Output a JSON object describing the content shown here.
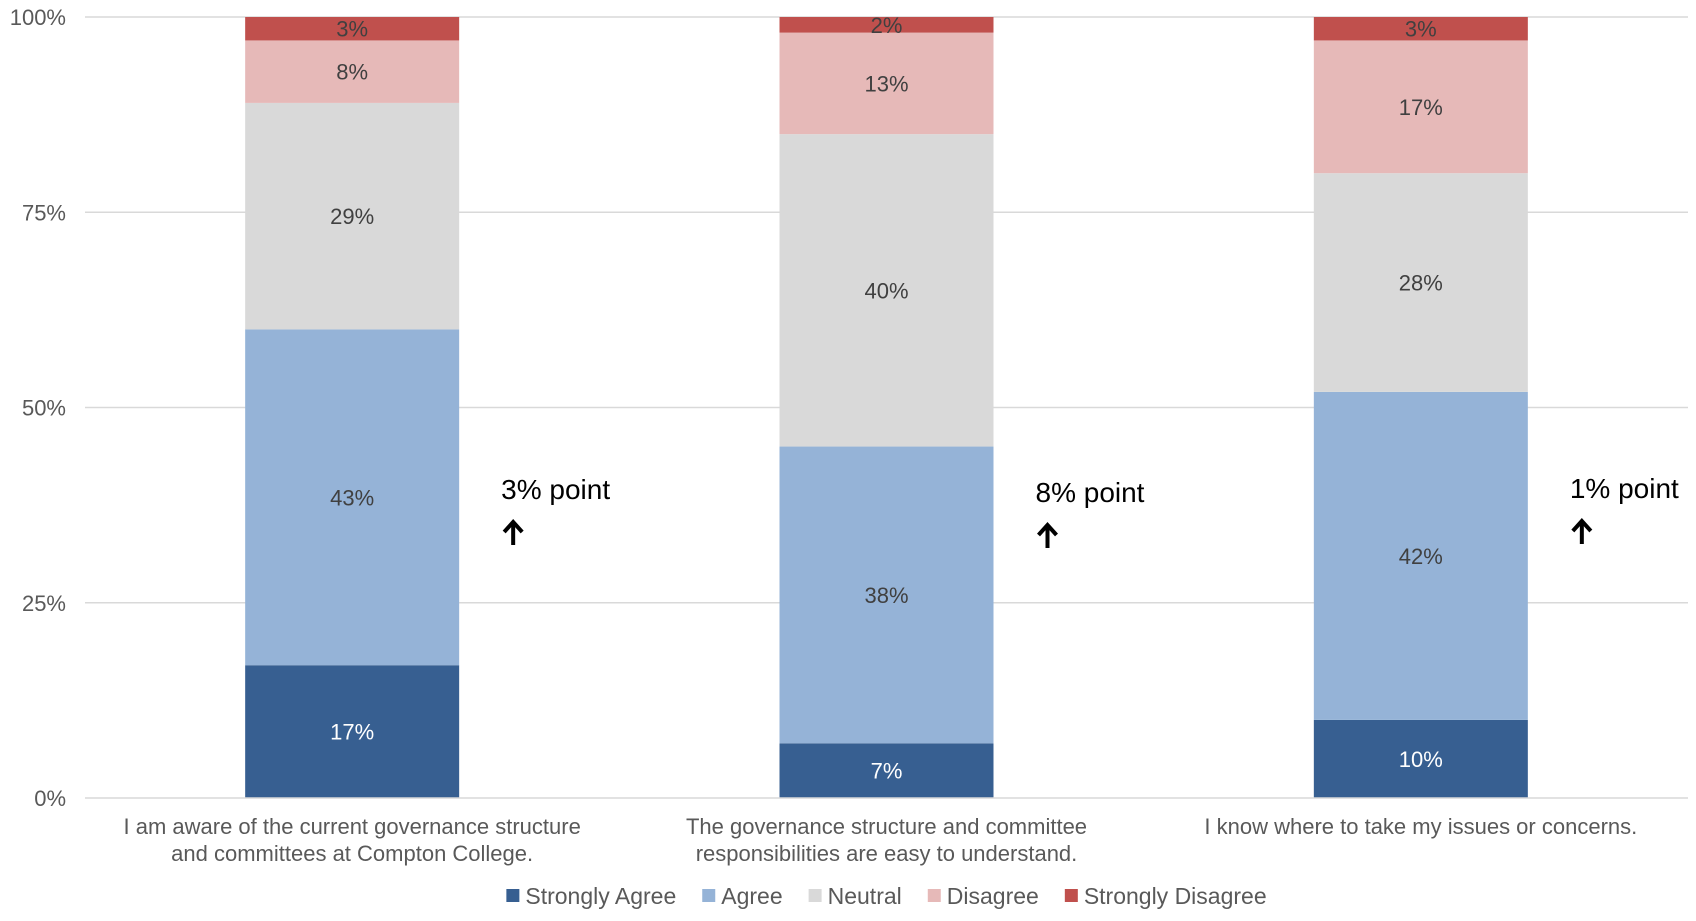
{
  "chart_data": {
    "type": "bar",
    "stacked": true,
    "y_unit": "%",
    "ylim": [
      0,
      100
    ],
    "yticks": [
      0,
      25,
      50,
      75,
      100
    ],
    "gridlines": true,
    "legend_position": "bottom",
    "categories": [
      [
        "I am aware of the current governance structure",
        "and committees at Compton College."
      ],
      [
        "The governance structure and committee",
        "responsibilities are easy to understand."
      ],
      [
        "I know where to take my issues or concerns."
      ]
    ],
    "series": [
      {
        "name": "Strongly Agree",
        "color": "#375F91",
        "label_color": "#FFFFFF",
        "values": [
          17,
          7,
          10
        ]
      },
      {
        "name": "Agree",
        "color": "#95B3D7",
        "label_color": "#404040",
        "values": [
          43,
          38,
          42
        ]
      },
      {
        "name": "Neutral",
        "color": "#D9D9D9",
        "label_color": "#404040",
        "values": [
          29,
          40,
          28
        ]
      },
      {
        "name": "Disagree",
        "color": "#E6B9B8",
        "label_color": "#404040",
        "values": [
          8,
          13,
          17
        ]
      },
      {
        "name": "Strongly Disagree",
        "color": "#C0504D",
        "label_color": "#404040",
        "values": [
          3,
          2,
          3
        ]
      }
    ],
    "annotations": [
      {
        "category_index": 0,
        "text": "3% point",
        "direction": "up"
      },
      {
        "category_index": 1,
        "text": "8% point",
        "direction": "up"
      },
      {
        "category_index": 2,
        "text": "1% point",
        "direction": "up"
      }
    ]
  }
}
